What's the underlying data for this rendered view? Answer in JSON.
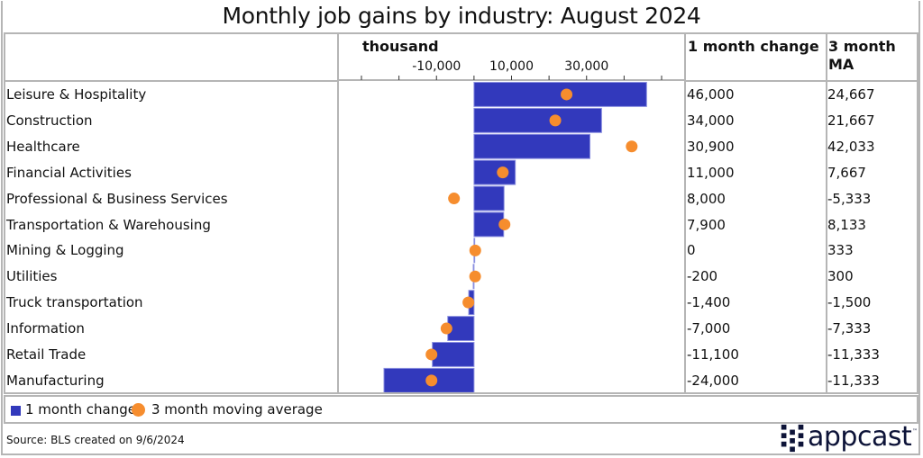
{
  "chart_data": {
    "type": "bar",
    "title": "Monthly job gains by industry: August 2024",
    "xlabel": "thousand",
    "xlim": [
      -30000,
      50000
    ],
    "tick_step": 10000,
    "tick_labels": [
      "-10,000",
      "10,000",
      "30,000"
    ],
    "tick_label_values": [
      -10000,
      10000,
      30000
    ],
    "grid": false,
    "orientation": "horizontal",
    "categories": [
      "Leisure & Hospitality",
      "Construction",
      "Healthcare",
      "Financial Activities",
      "Professional & Business Services",
      "Transportation & Warehousing",
      "Mining & Logging",
      "Utilities",
      "Truck transportation",
      "Information",
      "Retail Trade",
      "Manufacturing"
    ],
    "series": [
      {
        "name": "1 month change",
        "kind": "bar",
        "color": "#3239bc",
        "values": [
          46000,
          34000,
          30900,
          11000,
          8000,
          7900,
          0,
          -200,
          -1400,
          -7000,
          -11100,
          -24000
        ]
      },
      {
        "name": "3 month moving average",
        "kind": "dot",
        "color": "#f68d2e",
        "values": [
          24667,
          21667,
          42033,
          7667,
          -5333,
          8133,
          333,
          300,
          -1500,
          -7333,
          -11333,
          -11333
        ]
      }
    ],
    "table_columns": [
      "1 month change",
      "3 month MA"
    ],
    "table_values": [
      [
        "46,000",
        "24,667"
      ],
      [
        "34,000",
        "21,667"
      ],
      [
        "30,900",
        "42,033"
      ],
      [
        "11,000",
        "7,667"
      ],
      [
        "8,000",
        "-5,333"
      ],
      [
        "7,900",
        "8,133"
      ],
      [
        "0",
        "333"
      ],
      [
        "-200",
        "300"
      ],
      [
        "-1,400",
        "-1,500"
      ],
      [
        "-7,000",
        "-7,333"
      ],
      [
        "-11,100",
        "-11,333"
      ],
      [
        "-24,000",
        "-11,333"
      ]
    ],
    "legend": [
      "1 month change",
      "3 month moving average"
    ],
    "legend_position": "bottom-left"
  },
  "footer": {
    "source": "Source: BLS created on 9/6/2024",
    "brand": "appcast",
    "trademark": "™"
  },
  "colors": {
    "bar": "#3239bc",
    "bar_border": "#8a8fe0",
    "dot": "#f68d2e",
    "logo": "#0d1338"
  }
}
